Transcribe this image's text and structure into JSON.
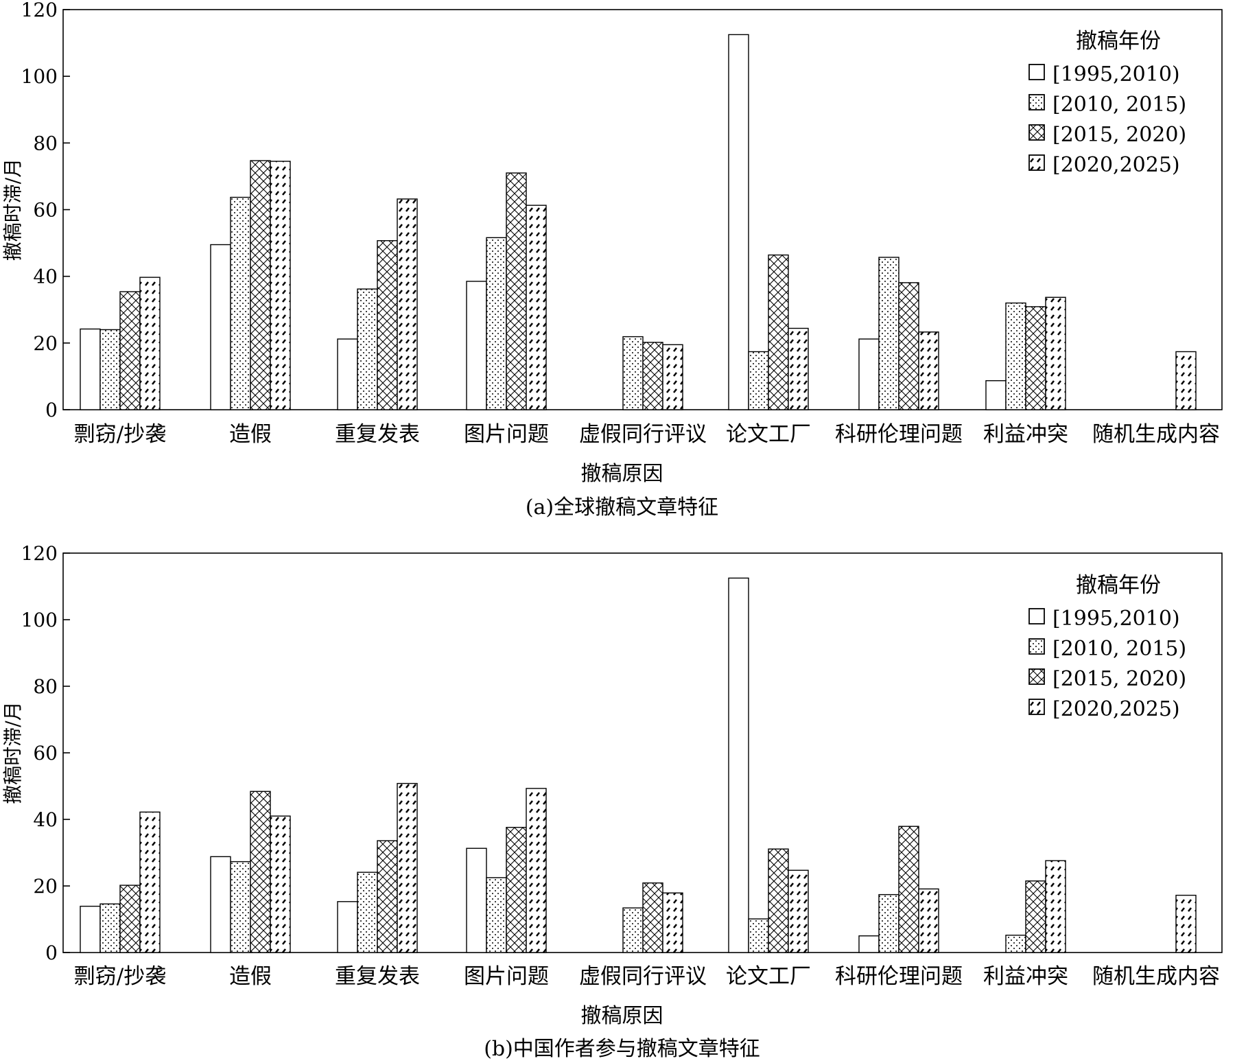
{
  "legend_title": "撤稿年份",
  "series_names": [
    "[1995,2010)",
    "[2010, 2015)",
    "[2015, 2020)",
    "[2020,2025)"
  ],
  "categories": [
    "剽窃/抄袭",
    "造假",
    "重复发表",
    "图片问题",
    "虚假同行评议",
    "论文工厂",
    "科研伦理问题",
    "利益冲突",
    "随机生成内容"
  ],
  "chart_data": [
    {
      "type": "bar",
      "caption": "(a)全球撤稿文章特征",
      "xlabel": "撤稿原因",
      "ylabel": "撤稿时滞/月",
      "ylim": [
        0,
        120
      ],
      "yticks": [
        0,
        20,
        40,
        60,
        80,
        100,
        120
      ],
      "grid": false,
      "legend_position": "top-right",
      "legend_title": "撤稿年份",
      "categories": [
        "剽窃/抄袭",
        "造假",
        "重复发表",
        "图片问题",
        "虚假同行评议",
        "论文工厂",
        "科研伦理问题",
        "利益冲突",
        "随机生成内容"
      ],
      "series": [
        {
          "name": "[1995,2010)",
          "pattern": "blank",
          "values": [
            24.2,
            49.5,
            21.2,
            38.5,
            null,
            112.5,
            21.2,
            8.7,
            null
          ]
        },
        {
          "name": "[2010, 2015)",
          "pattern": "dots",
          "values": [
            24.0,
            63.7,
            36.2,
            51.6,
            21.9,
            17.4,
            45.7,
            32.0,
            null
          ]
        },
        {
          "name": "[2015, 2020)",
          "pattern": "crosshatch",
          "values": [
            35.4,
            74.7,
            50.7,
            71.0,
            20.2,
            46.4,
            38.1,
            30.9,
            null
          ]
        },
        {
          "name": "[2020,2025)",
          "pattern": "dashes",
          "values": [
            39.7,
            74.5,
            63.2,
            61.3,
            19.5,
            24.4,
            23.3,
            33.7,
            17.4
          ]
        }
      ]
    },
    {
      "type": "bar",
      "caption": "(b)中国作者参与撤稿文章特征",
      "xlabel": "撤稿原因",
      "ylabel": "撤稿时滞/月",
      "ylim": [
        0,
        120
      ],
      "yticks": [
        0,
        20,
        40,
        60,
        80,
        100,
        120
      ],
      "grid": false,
      "legend_position": "top-right",
      "legend_title": "撤稿年份",
      "categories": [
        "剽窃/抄袭",
        "造假",
        "重复发表",
        "图片问题",
        "虚假同行评议",
        "论文工厂",
        "科研伦理问题",
        "利益冲突",
        "随机生成内容"
      ],
      "series": [
        {
          "name": "[1995,2010)",
          "pattern": "blank",
          "values": [
            13.9,
            28.8,
            15.3,
            31.3,
            null,
            112.5,
            5.0,
            null,
            null
          ]
        },
        {
          "name": "[2010, 2015)",
          "pattern": "dots",
          "values": [
            14.6,
            27.3,
            24.1,
            22.5,
            13.4,
            10.1,
            17.4,
            5.2,
            null
          ]
        },
        {
          "name": "[2015, 2020)",
          "pattern": "crosshatch",
          "values": [
            20.2,
            48.4,
            33.6,
            37.6,
            20.9,
            31.1,
            37.9,
            21.5,
            null
          ]
        },
        {
          "name": "[2020,2025)",
          "pattern": "dashes",
          "values": [
            42.2,
            41.0,
            50.8,
            49.3,
            17.9,
            24.7,
            19.1,
            27.6,
            17.2
          ]
        }
      ]
    }
  ]
}
